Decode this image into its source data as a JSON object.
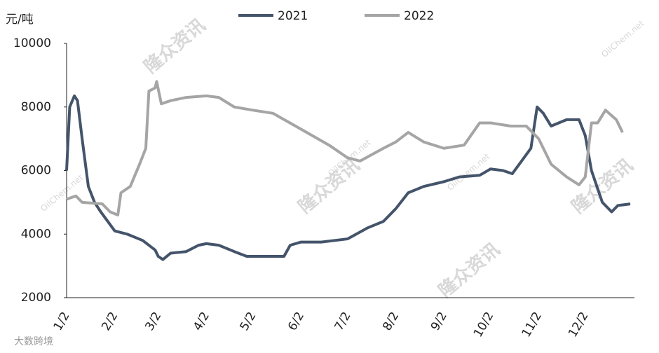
{
  "chart_data": {
    "type": "line",
    "y_label": "元/吨",
    "watermarks": [
      "隆众资讯",
      "OilChem.net",
      "大数跨境"
    ],
    "ylim": [
      2000,
      10000
    ],
    "yticks": [
      2000,
      4000,
      6000,
      8000,
      10000
    ],
    "xticks": [
      "1/2",
      "2/2",
      "3/2",
      "4/2",
      "5/2",
      "6/2",
      "7/2",
      "8/2",
      "9/2",
      "10/2",
      "11/2",
      "12/2"
    ],
    "series": [
      {
        "name": "2021",
        "color": "#44546a",
        "x": [
          "1/2",
          "1/4",
          "1/7",
          "1/9",
          "1/12",
          "1/16",
          "1/20",
          "1/24",
          "2/2",
          "2/10",
          "2/20",
          "2/28",
          "3/2",
          "3/5",
          "3/10",
          "3/20",
          "3/28",
          "4/2",
          "4/10",
          "4/20",
          "4/28",
          "5/2",
          "5/15",
          "5/22",
          "5/26",
          "6/2",
          "6/15",
          "7/2",
          "7/15",
          "7/25",
          "8/2",
          "8/10",
          "8/20",
          "9/2",
          "9/12",
          "9/25",
          "10/2",
          "10/10",
          "10/16",
          "10/22",
          "10/28",
          "11/1",
          "11/5",
          "11/10",
          "11/20",
          "11/28",
          "12/2",
          "12/6",
          "12/13",
          "12/19",
          "12/23",
          "12/31"
        ],
        "values": [
          6000,
          8000,
          8350,
          8200,
          7000,
          5500,
          5000,
          4700,
          4100,
          4000,
          3800,
          3500,
          3300,
          3200,
          3400,
          3450,
          3650,
          3700,
          3650,
          3450,
          3300,
          3300,
          3300,
          3300,
          3650,
          3750,
          3750,
          3850,
          4200,
          4400,
          4800,
          5300,
          5500,
          5650,
          5800,
          5850,
          6050,
          6000,
          5900,
          6300,
          6700,
          8000,
          7800,
          7400,
          7600,
          7600,
          7100,
          6000,
          5000,
          4700,
          4900,
          4950
        ]
      },
      {
        "name": "2022",
        "color": "#a5a5a5",
        "x": [
          "1/2",
          "1/8",
          "1/12",
          "1/25",
          "1/30",
          "2/4",
          "2/6",
          "2/12",
          "2/18",
          "2/22",
          "2/24",
          "2/28",
          "3/1",
          "3/4",
          "3/10",
          "3/20",
          "4/2",
          "4/10",
          "4/20",
          "5/2",
          "5/15",
          "6/2",
          "6/20",
          "7/2",
          "7/10",
          "7/25",
          "8/2",
          "8/10",
          "8/20",
          "9/2",
          "9/15",
          "9/25",
          "10/2",
          "10/15",
          "10/25",
          "11/2",
          "11/10",
          "11/20",
          "11/28",
          "12/2",
          "12/6",
          "12/10",
          "12/15",
          "12/22",
          "12/26"
        ],
        "values": [
          5100,
          5200,
          5000,
          4950,
          4700,
          4600,
          5300,
          5500,
          6200,
          6700,
          8500,
          8600,
          8800,
          8100,
          8200,
          8300,
          8350,
          8300,
          8000,
          7900,
          7800,
          7300,
          6800,
          6400,
          6300,
          6700,
          6900,
          7200,
          6900,
          6700,
          6800,
          7500,
          7500,
          7400,
          7400,
          7000,
          6200,
          5800,
          5550,
          5800,
          7500,
          7500,
          7900,
          7600,
          7200
        ]
      }
    ]
  }
}
